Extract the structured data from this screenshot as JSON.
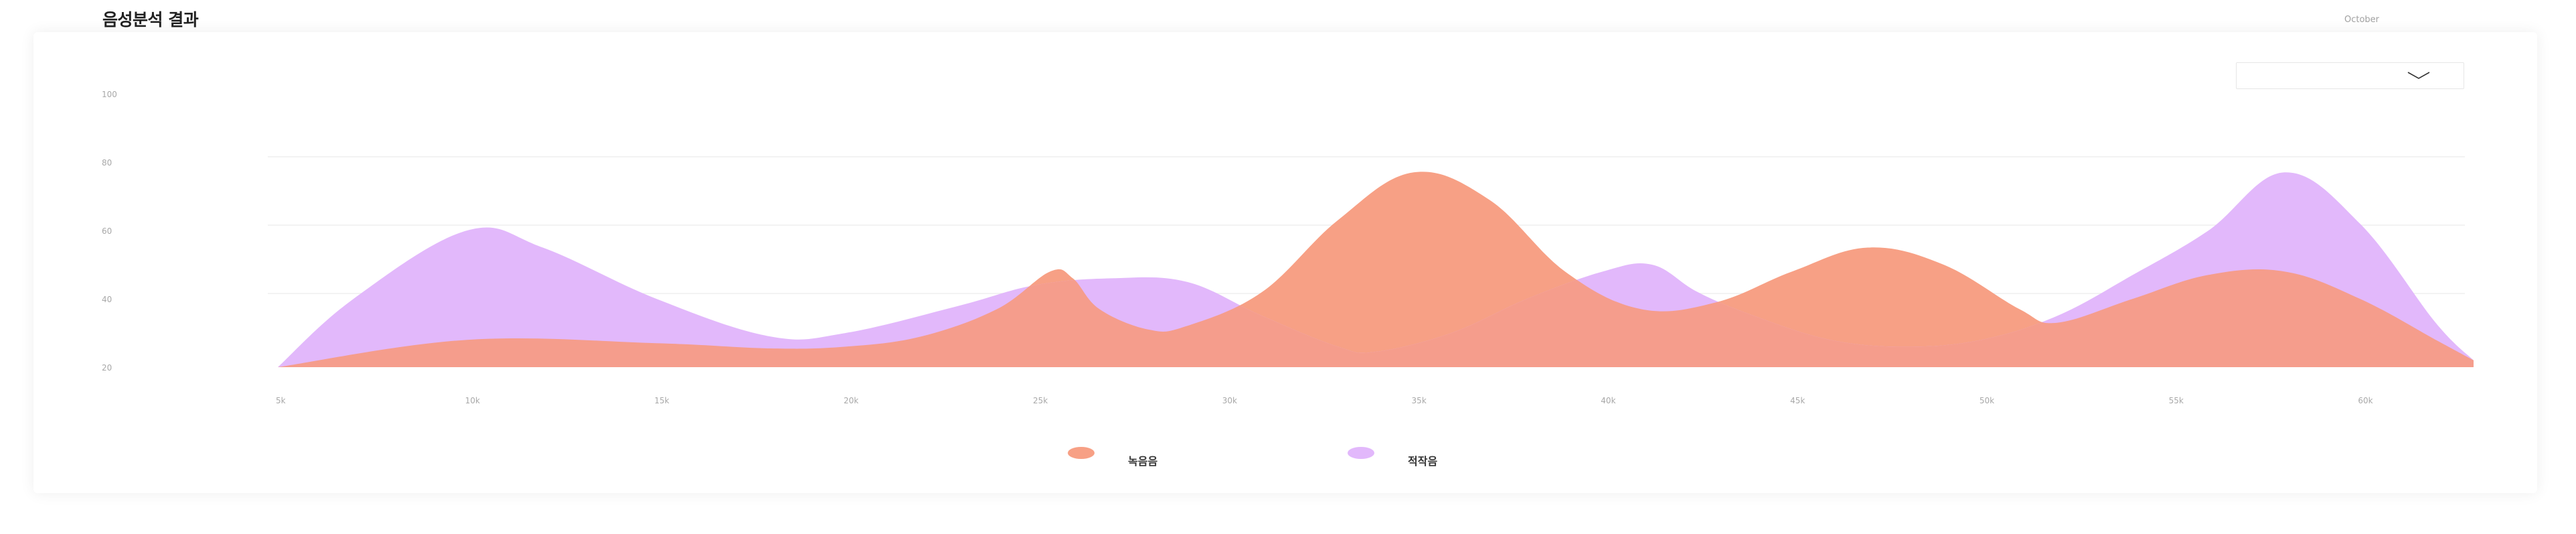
{
  "header": {
    "title": "음성분석 결과",
    "month": "October"
  },
  "dropdown": {
    "selected": "",
    "icon": "chevron-down-icon"
  },
  "colors": {
    "series1": "#f7a085",
    "series2": "#e2b8fb",
    "overlap": "#f59d8c",
    "grid": "#efefef",
    "tick": "#a8a8a8"
  },
  "chart_data": {
    "type": "area",
    "title": "",
    "xlabel": "",
    "ylabel": "",
    "x": [
      5,
      10,
      15,
      20,
      25,
      30,
      35,
      40,
      45,
      50,
      55,
      60
    ],
    "x_tick_labels": [
      "5k",
      "10k",
      "15k",
      "20k",
      "25k",
      "30k",
      "35k",
      "40k",
      "45k",
      "50k",
      "55k",
      "60k"
    ],
    "xlim": [
      5,
      63
    ],
    "y_ticks": [
      20,
      40,
      60,
      80,
      100
    ],
    "ylim": [
      20,
      100
    ],
    "grid": true,
    "legend_position": "bottom-center",
    "series": [
      {
        "name": "녹음음",
        "color": "#f7a085",
        "points": [
          [
            5,
            20
          ],
          [
            10,
            28
          ],
          [
            15,
            27
          ],
          [
            18,
            25.5
          ],
          [
            20,
            26
          ],
          [
            22,
            29
          ],
          [
            24,
            37
          ],
          [
            25.4,
            48
          ],
          [
            26,
            46
          ],
          [
            26.7,
            37
          ],
          [
            28,
            31
          ],
          [
            29,
            32
          ],
          [
            31,
            42
          ],
          [
            33,
            63
          ],
          [
            35,
            77
          ],
          [
            37,
            69
          ],
          [
            39,
            48
          ],
          [
            41,
            37
          ],
          [
            43,
            39
          ],
          [
            45,
            48
          ],
          [
            47,
            55
          ],
          [
            49,
            50
          ],
          [
            51,
            37
          ],
          [
            52,
            33
          ],
          [
            54,
            40
          ],
          [
            56,
            47
          ],
          [
            58,
            48
          ],
          [
            60,
            40
          ],
          [
            62,
            28
          ],
          [
            63,
            22
          ]
        ]
      },
      {
        "name": "적작음",
        "color": "#e2b8fb",
        "points": [
          [
            5,
            20
          ],
          [
            7,
            40
          ],
          [
            10,
            60
          ],
          [
            12,
            55
          ],
          [
            15,
            40
          ],
          [
            18,
            29
          ],
          [
            20,
            30
          ],
          [
            23,
            38
          ],
          [
            25,
            44
          ],
          [
            27,
            46
          ],
          [
            29,
            45
          ],
          [
            31,
            35
          ],
          [
            33,
            26
          ],
          [
            34,
            24.5
          ],
          [
            36,
            30
          ],
          [
            38,
            40
          ],
          [
            40,
            48
          ],
          [
            41.3,
            50
          ],
          [
            42.5,
            42
          ],
          [
            44,
            35
          ],
          [
            46,
            28
          ],
          [
            48,
            26
          ],
          [
            50,
            28
          ],
          [
            52,
            35
          ],
          [
            54,
            47
          ],
          [
            56,
            60
          ],
          [
            58,
            77
          ],
          [
            60,
            62
          ],
          [
            62,
            33
          ],
          [
            63,
            22
          ]
        ]
      }
    ]
  }
}
